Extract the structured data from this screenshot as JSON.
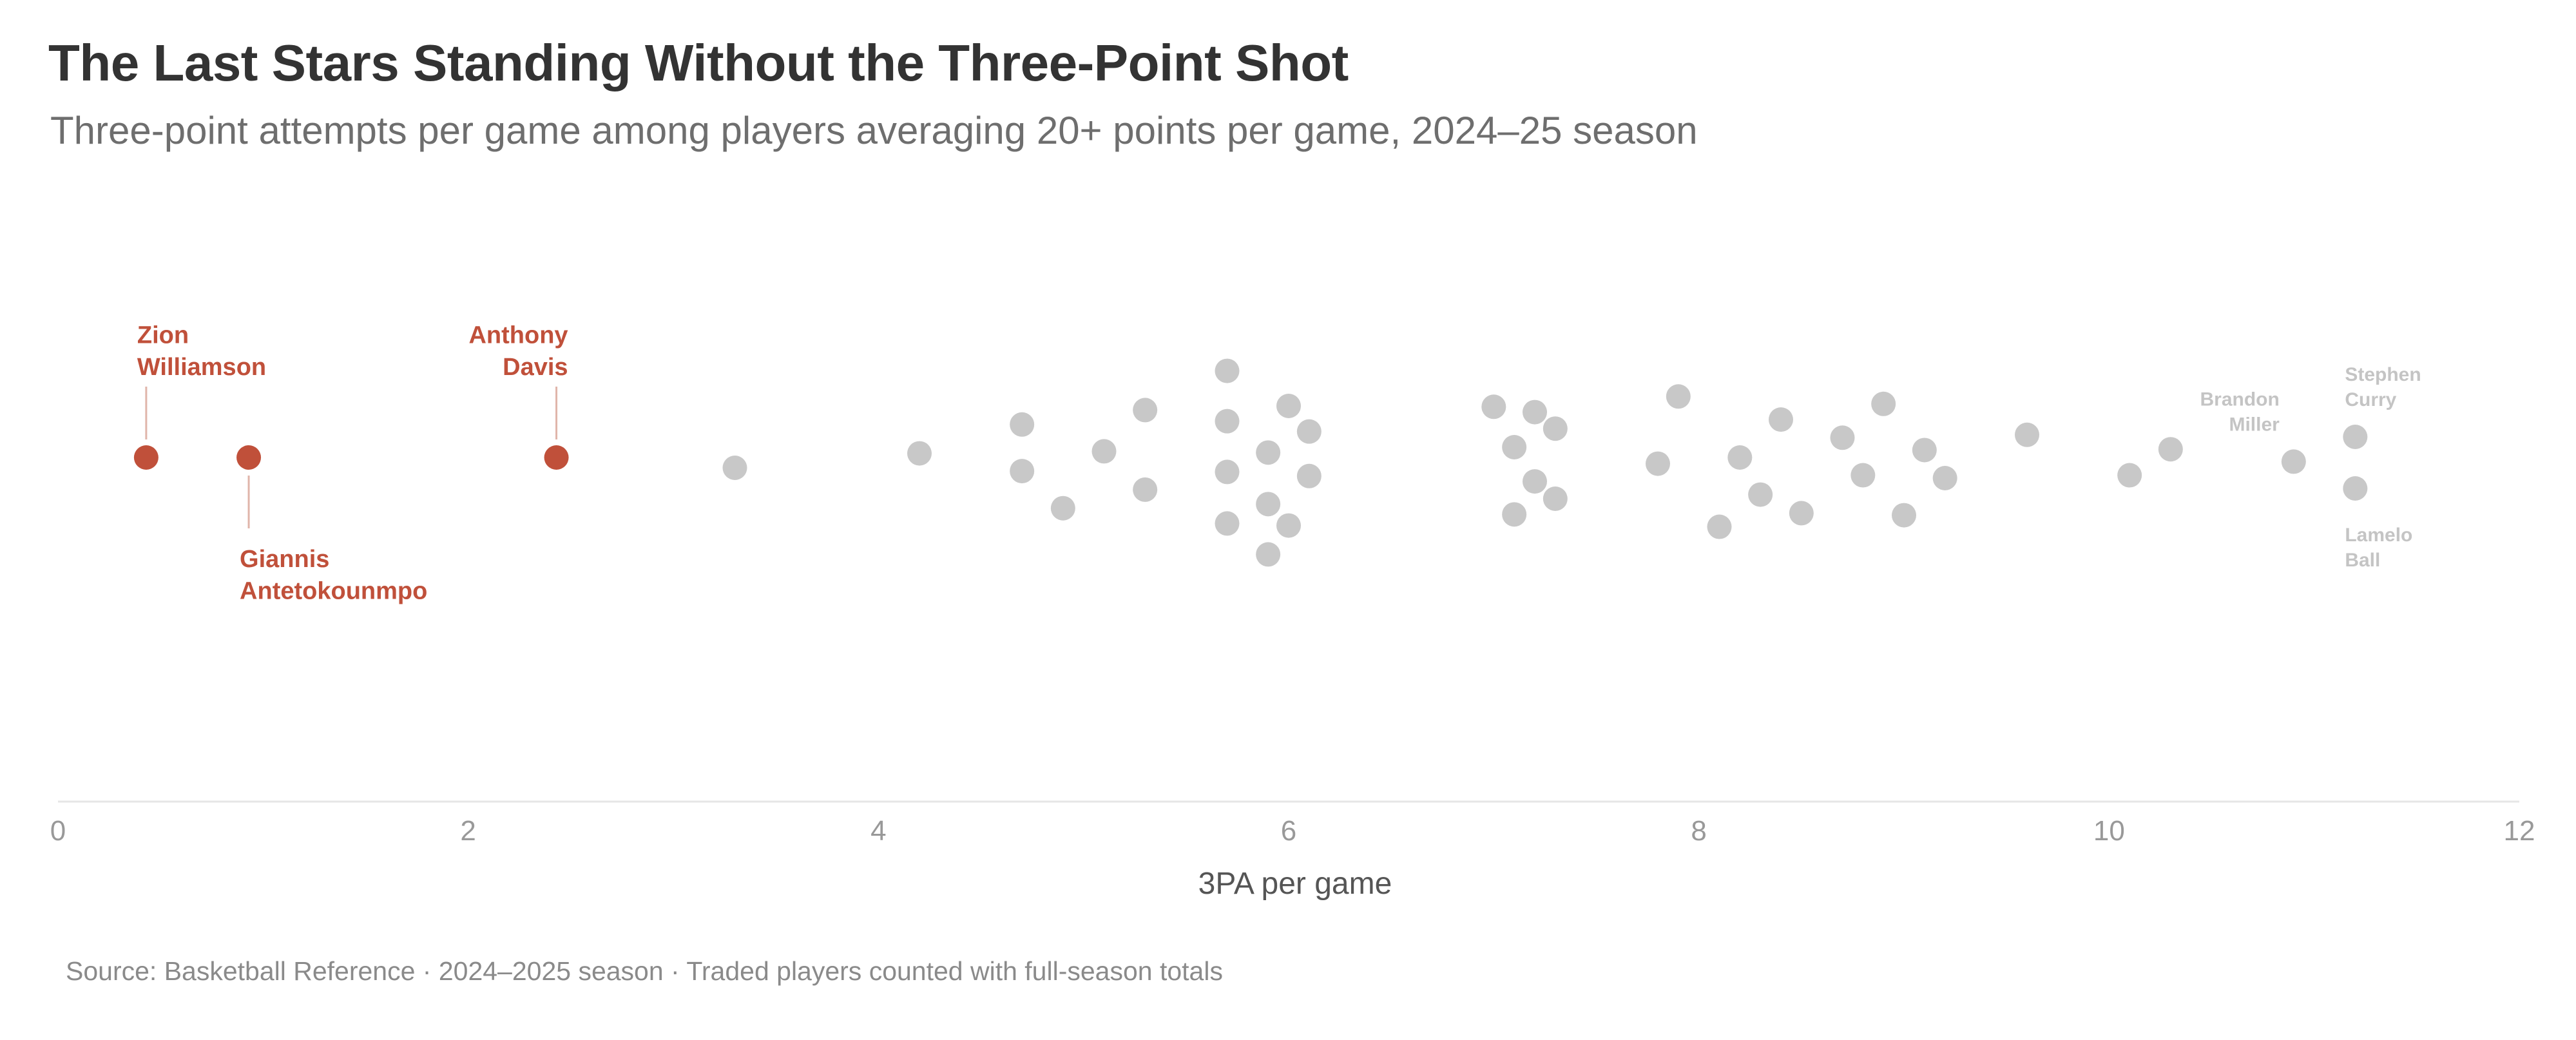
{
  "chart_data": {
    "type": "scatter",
    "title": "The Last Stars Standing Without the Three-Point Shot",
    "subtitle": "Three-point attempts per game among players averaging 20+ points per game, 2024–25 season",
    "xlabel": "3PA per game",
    "xlim": [
      0,
      12
    ],
    "xticks": [
      "0",
      "2",
      "4",
      "6",
      "8",
      "10",
      "12"
    ],
    "source": "Source: Basketball Reference · 2024–2025 season · Traded players counted with full-season totals",
    "grid": false,
    "colors": {
      "highlight": "#c0503a",
      "other": "#c8c8c8"
    },
    "highlighted": [
      {
        "name": [
          "Zion",
          "Williamson"
        ],
        "x": 0.43,
        "lane": 0,
        "label_pos": "above-right"
      },
      {
        "name": [
          "Giannis",
          "Antetokounmpo"
        ],
        "x": 0.93,
        "lane": 0,
        "label_pos": "below-right"
      },
      {
        "name": [
          "Anthony",
          "Davis"
        ],
        "x": 2.43,
        "lane": 0,
        "label_pos": "above-left"
      }
    ],
    "labeled_others": [
      {
        "name": [
          "Stephen",
          "Curry"
        ],
        "x": 11.2,
        "lane": 0.5,
        "label_pos": "above-right"
      },
      {
        "name": [
          "Brandon",
          "Miller"
        ],
        "x": 10.9,
        "lane": -0.1,
        "label_pos": "above-left"
      },
      {
        "name": [
          "Lamelo",
          "Ball"
        ],
        "x": 11.2,
        "lane": -0.75,
        "label_pos": "below-right"
      }
    ],
    "others": [
      {
        "x": 3.3,
        "lane": -0.25
      },
      {
        "x": 4.2,
        "lane": 0.1
      },
      {
        "x": 4.7,
        "lane": 0.8
      },
      {
        "x": 4.7,
        "lane": -0.33
      },
      {
        "x": 4.9,
        "lane": -1.23
      },
      {
        "x": 5.1,
        "lane": 0.15
      },
      {
        "x": 5.3,
        "lane": 1.15
      },
      {
        "x": 5.3,
        "lane": -0.78
      },
      {
        "x": 5.7,
        "lane": 2.1
      },
      {
        "x": 5.7,
        "lane": 0.88
      },
      {
        "x": 5.7,
        "lane": -0.35
      },
      {
        "x": 5.7,
        "lane": -1.6
      },
      {
        "x": 5.9,
        "lane": 0.12
      },
      {
        "x": 5.9,
        "lane": -1.13
      },
      {
        "x": 5.9,
        "lane": -2.35
      },
      {
        "x": 6.0,
        "lane": 1.25
      },
      {
        "x": 6.0,
        "lane": -1.65
      },
      {
        "x": 6.1,
        "lane": 0.63
      },
      {
        "x": 6.1,
        "lane": -0.45
      },
      {
        "x": 7.0,
        "lane": 1.23
      },
      {
        "x": 7.1,
        "lane": 0.25
      },
      {
        "x": 7.1,
        "lane": -1.38
      },
      {
        "x": 7.2,
        "lane": 1.1
      },
      {
        "x": 7.2,
        "lane": -0.58
      },
      {
        "x": 7.3,
        "lane": 0.7
      },
      {
        "x": 7.3,
        "lane": -1.0
      },
      {
        "x": 7.8,
        "lane": -0.15
      },
      {
        "x": 7.9,
        "lane": 1.48
      },
      {
        "x": 8.1,
        "lane": -1.68
      },
      {
        "x": 8.2,
        "lane": 0.0
      },
      {
        "x": 8.3,
        "lane": -0.9
      },
      {
        "x": 8.4,
        "lane": 0.92
      },
      {
        "x": 8.5,
        "lane": -1.35
      },
      {
        "x": 8.7,
        "lane": 0.48
      },
      {
        "x": 8.8,
        "lane": -0.43
      },
      {
        "x": 8.9,
        "lane": 1.3
      },
      {
        "x": 9.0,
        "lane": -1.4
      },
      {
        "x": 9.1,
        "lane": 0.18
      },
      {
        "x": 9.2,
        "lane": -0.5
      },
      {
        "x": 9.6,
        "lane": 0.55
      },
      {
        "x": 10.1,
        "lane": -0.43
      },
      {
        "x": 10.3,
        "lane": 0.2
      }
    ]
  }
}
